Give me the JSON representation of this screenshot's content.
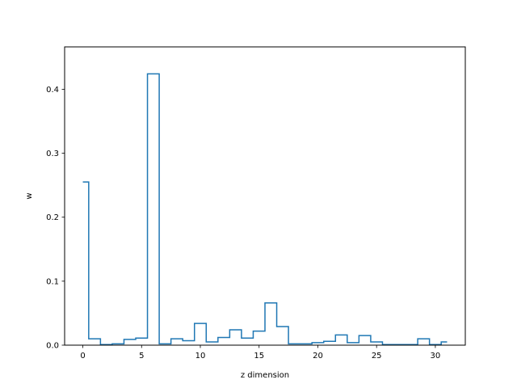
{
  "chart_data": {
    "type": "step",
    "xlabel": "z dimension",
    "ylabel": "w",
    "xlim": [
      -1.55,
      32.55
    ],
    "ylim": [
      0,
      0.4662
    ],
    "x_ticks": [
      0,
      5,
      10,
      15,
      20,
      25,
      30
    ],
    "x_tick_labels": [
      "0",
      "5",
      "10",
      "15",
      "20",
      "25",
      "30"
    ],
    "y_ticks": [
      0.0,
      0.1,
      0.2,
      0.3,
      0.4
    ],
    "y_tick_labels": [
      "0.0",
      "0.1",
      "0.2",
      "0.3",
      "0.4"
    ],
    "grid": false,
    "line_color": "#1f77b4",
    "x": [
      0,
      1,
      2,
      3,
      4,
      5,
      6,
      7,
      8,
      9,
      10,
      11,
      12,
      13,
      14,
      15,
      16,
      17,
      18,
      19,
      20,
      21,
      22,
      23,
      24,
      25,
      26,
      27,
      28,
      29,
      30,
      31
    ],
    "values": [
      0.255,
      0.01,
      0.001,
      0.002,
      0.009,
      0.011,
      0.424,
      0.002,
      0.01,
      0.007,
      0.034,
      0.005,
      0.012,
      0.024,
      0.011,
      0.022,
      0.066,
      0.029,
      0.002,
      0.002,
      0.004,
      0.006,
      0.016,
      0.004,
      0.015,
      0.005,
      0.001,
      0.001,
      0.001,
      0.01,
      0.001,
      0.005
    ]
  }
}
